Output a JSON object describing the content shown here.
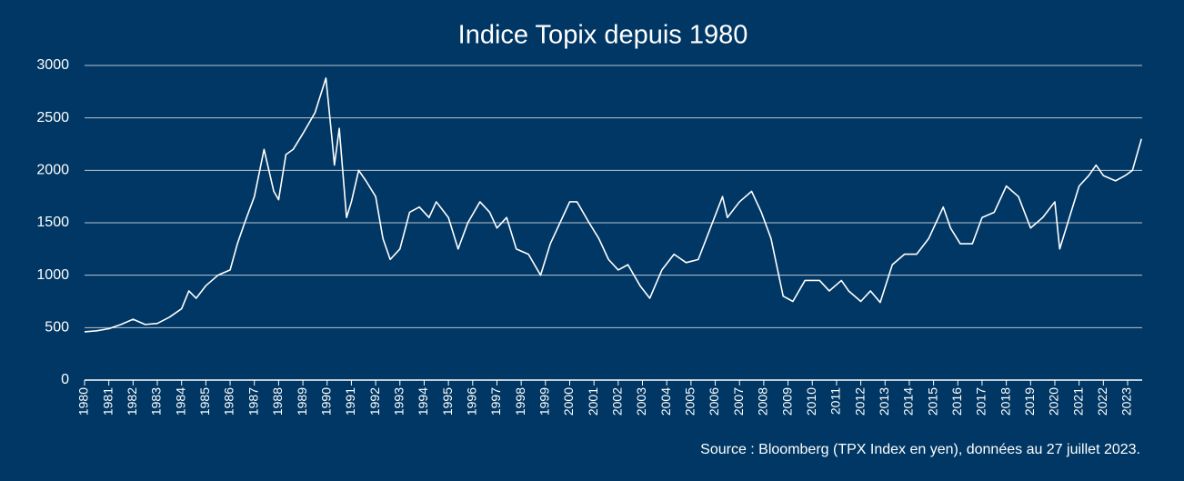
{
  "chart_data": {
    "type": "line",
    "title": "Indice Topix depuis 1980",
    "source": "Source : Bloomberg (TPX Index en yen), données au 27 juillet 2023.",
    "color": "#ffffff",
    "grid": true,
    "xlim": [
      1980,
      2023.6
    ],
    "ylim": [
      0,
      3000
    ],
    "yticks": [
      0,
      500,
      1000,
      1500,
      2000,
      2500,
      3000
    ],
    "xticks": [
      1980,
      1981,
      1982,
      1983,
      1984,
      1985,
      1986,
      1987,
      1988,
      1989,
      1990,
      1991,
      1992,
      1993,
      1994,
      1995,
      1996,
      1997,
      1998,
      1999,
      2000,
      2001,
      2002,
      2003,
      2004,
      2005,
      2006,
      2007,
      2008,
      2009,
      2010,
      2011,
      2012,
      2013,
      2014,
      2015,
      2016,
      2017,
      2018,
      2019,
      2020,
      2021,
      2022,
      2023
    ],
    "x": [
      1980.0,
      1980.5,
      1981.0,
      1981.5,
      1982.0,
      1982.5,
      1983.0,
      1983.5,
      1984.0,
      1984.3,
      1984.6,
      1985.0,
      1985.5,
      1986.0,
      1986.3,
      1986.6,
      1987.0,
      1987.4,
      1987.8,
      1988.0,
      1988.3,
      1988.6,
      1989.0,
      1989.5,
      1989.95,
      1990.2,
      1990.3,
      1990.5,
      1990.8,
      1991.0,
      1991.3,
      1991.6,
      1992.0,
      1992.3,
      1992.6,
      1993.0,
      1993.4,
      1993.8,
      1994.2,
      1994.5,
      1995.0,
      1995.4,
      1995.8,
      1996.3,
      1996.7,
      1997.0,
      1997.4,
      1997.8,
      1998.3,
      1998.8,
      1999.2,
      1999.6,
      2000.0,
      2000.3,
      2000.8,
      2001.2,
      2001.6,
      2002.0,
      2002.4,
      2002.9,
      2003.3,
      2003.8,
      2004.3,
      2004.8,
      2005.3,
      2005.8,
      2006.3,
      2006.5,
      2007.0,
      2007.5,
      2007.9,
      2008.3,
      2008.8,
      2009.2,
      2009.7,
      2010.3,
      2010.7,
      2011.2,
      2011.5,
      2012.0,
      2012.4,
      2012.8,
      2013.3,
      2013.8,
      2014.3,
      2014.8,
      2015.4,
      2015.7,
      2016.1,
      2016.6,
      2017.0,
      2017.5,
      2018.0,
      2018.5,
      2019.0,
      2019.5,
      2020.0,
      2020.2,
      2020.6,
      2021.0,
      2021.4,
      2021.7,
      2022.0,
      2022.5,
      2022.9,
      2023.2,
      2023.57
    ],
    "values": [
      460,
      470,
      490,
      530,
      580,
      530,
      540,
      600,
      680,
      850,
      780,
      900,
      1000,
      1050,
      1300,
      1500,
      1750,
      2200,
      1800,
      1720,
      2150,
      2200,
      2350,
      2550,
      2880,
      2300,
      2050,
      2400,
      1550,
      1700,
      2000,
      1900,
      1750,
      1350,
      1150,
      1250,
      1600,
      1650,
      1550,
      1700,
      1550,
      1250,
      1500,
      1700,
      1600,
      1450,
      1550,
      1250,
      1200,
      1000,
      1300,
      1500,
      1700,
      1700,
      1500,
      1350,
      1150,
      1050,
      1100,
      900,
      780,
      1050,
      1200,
      1120,
      1150,
      1450,
      1750,
      1550,
      1700,
      1800,
      1600,
      1350,
      800,
      750,
      950,
      950,
      850,
      950,
      850,
      750,
      850,
      740,
      1100,
      1200,
      1200,
      1350,
      1650,
      1450,
      1300,
      1300,
      1550,
      1600,
      1850,
      1750,
      1450,
      1550,
      1700,
      1250,
      1550,
      1850,
      1950,
      2050,
      1950,
      1900,
      1950,
      2000,
      2300
    ]
  }
}
